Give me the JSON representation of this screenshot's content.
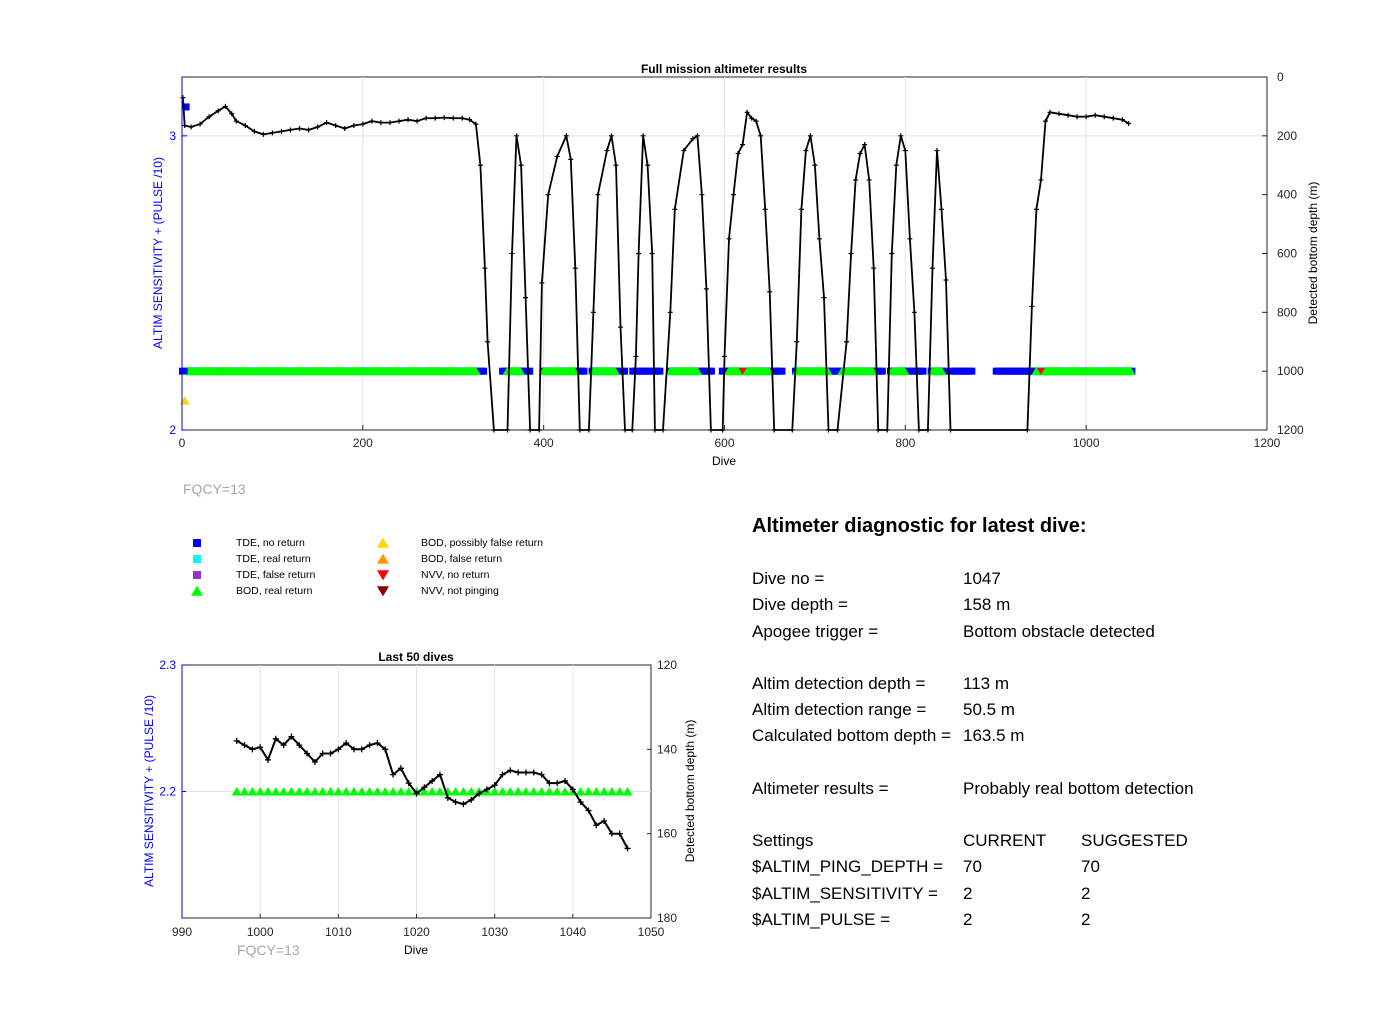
{
  "colors": {
    "left_axis": "#0000ff",
    "tde_no_return": "#0000ff",
    "tde_real_return": "#00ffff",
    "tde_false_return": "#9932cc",
    "bod_real_return": "#00ff00",
    "bod_possibly_false": "#ffd700",
    "bod_false": "#ff9900",
    "nvv_no_return": "#ff0000",
    "nvv_not_pinging": "#8b0000",
    "depth_line": "#000000"
  },
  "chart_data": [
    {
      "type": "scatter",
      "title": "Full mission altimeter results",
      "xlabel": "Dive",
      "ylabel": "ALTIM SENSITIVITY + (PULSE /10)",
      "ylabel_right": "Detected bottom depth (m)",
      "xlim": [
        0,
        1200
      ],
      "ylim": [
        2,
        3.2
      ],
      "ylim_right": [
        1200,
        0
      ],
      "x_ticks": [
        "0",
        "200",
        "400",
        "600",
        "800",
        "1000",
        "1200"
      ],
      "y_ticks": [
        "2",
        "3"
      ],
      "y_ticks_right": [
        "0",
        "200",
        "400",
        "600",
        "800",
        "1000",
        "1200"
      ],
      "grid": true,
      "depth_points": [
        [
          1,
          70
        ],
        [
          3,
          165
        ],
        [
          10,
          170
        ],
        [
          20,
          160
        ],
        [
          30,
          135
        ],
        [
          40,
          115
        ],
        [
          48,
          100
        ],
        [
          55,
          125
        ],
        [
          60,
          150
        ],
        [
          70,
          165
        ],
        [
          80,
          185
        ],
        [
          90,
          195
        ],
        [
          100,
          190
        ],
        [
          110,
          185
        ],
        [
          120,
          180
        ],
        [
          130,
          175
        ],
        [
          140,
          180
        ],
        [
          150,
          170
        ],
        [
          160,
          155
        ],
        [
          170,
          165
        ],
        [
          180,
          175
        ],
        [
          190,
          165
        ],
        [
          200,
          160
        ],
        [
          210,
          150
        ],
        [
          220,
          155
        ],
        [
          230,
          155
        ],
        [
          240,
          150
        ],
        [
          250,
          145
        ],
        [
          260,
          150
        ],
        [
          270,
          140
        ],
        [
          280,
          140
        ],
        [
          290,
          138
        ],
        [
          300,
          140
        ],
        [
          310,
          140
        ],
        [
          318,
          145
        ],
        [
          325,
          160
        ],
        [
          330,
          300
        ],
        [
          335,
          650
        ],
        [
          338,
          900
        ],
        [
          345,
          1200
        ],
        [
          360,
          1200
        ],
        [
          365,
          600
        ],
        [
          370,
          200
        ],
        [
          375,
          300
        ],
        [
          380,
          750
        ],
        [
          385,
          1200
        ],
        [
          395,
          1200
        ],
        [
          398,
          700
        ],
        [
          405,
          400
        ],
        [
          415,
          270
        ],
        [
          425,
          200
        ],
        [
          430,
          280
        ],
        [
          435,
          650
        ],
        [
          440,
          1200
        ],
        [
          450,
          1200
        ],
        [
          455,
          800
        ],
        [
          460,
          400
        ],
        [
          470,
          250
        ],
        [
          475,
          200
        ],
        [
          480,
          300
        ],
        [
          485,
          850
        ],
        [
          490,
          1200
        ],
        [
          498,
          1200
        ],
        [
          502,
          950
        ],
        [
          505,
          600
        ],
        [
          510,
          200
        ],
        [
          515,
          300
        ],
        [
          520,
          600
        ],
        [
          523,
          1200
        ],
        [
          532,
          1200
        ],
        [
          540,
          800
        ],
        [
          545,
          450
        ],
        [
          555,
          250
        ],
        [
          565,
          210
        ],
        [
          570,
          200
        ],
        [
          575,
          400
        ],
        [
          580,
          720
        ],
        [
          585,
          1200
        ],
        [
          598,
          1200
        ],
        [
          600,
          950
        ],
        [
          605,
          550
        ],
        [
          610,
          400
        ],
        [
          615,
          260
        ],
        [
          620,
          230
        ],
        [
          625,
          120
        ],
        [
          630,
          140
        ],
        [
          635,
          150
        ],
        [
          640,
          200
        ],
        [
          645,
          450
        ],
        [
          650,
          730
        ],
        [
          655,
          1200
        ],
        [
          675,
          1200
        ],
        [
          680,
          900
        ],
        [
          685,
          450
        ],
        [
          690,
          250
        ],
        [
          695,
          200
        ],
        [
          700,
          300
        ],
        [
          705,
          550
        ],
        [
          710,
          750
        ],
        [
          715,
          1200
        ],
        [
          725,
          1200
        ],
        [
          735,
          900
        ],
        [
          740,
          600
        ],
        [
          745,
          350
        ],
        [
          750,
          260
        ],
        [
          755,
          230
        ],
        [
          760,
          350
        ],
        [
          765,
          650
        ],
        [
          770,
          1200
        ],
        [
          780,
          1200
        ],
        [
          785,
          600
        ],
        [
          790,
          300
        ],
        [
          795,
          200
        ],
        [
          800,
          250
        ],
        [
          805,
          550
        ],
        [
          810,
          800
        ],
        [
          815,
          1200
        ],
        [
          825,
          1200
        ],
        [
          830,
          650
        ],
        [
          835,
          250
        ],
        [
          840,
          450
        ],
        [
          845,
          690
        ],
        [
          850,
          1200
        ],
        [
          935,
          1200
        ],
        [
          940,
          780
        ],
        [
          945,
          450
        ],
        [
          950,
          350
        ],
        [
          955,
          150
        ],
        [
          960,
          120
        ],
        [
          970,
          125
        ],
        [
          980,
          130
        ],
        [
          990,
          135
        ],
        [
          1000,
          135
        ],
        [
          1010,
          130
        ],
        [
          1020,
          135
        ],
        [
          1030,
          140
        ],
        [
          1040,
          145
        ],
        [
          1047,
          158
        ]
      ],
      "markers": [
        {
          "name": "TDE, no return",
          "dives_ranges": [
            [
              0,
              1050
            ]
          ],
          "y": 2.2
        },
        {
          "name": "BOD, real return",
          "dives_ranges": [
            [
              5,
              325
            ],
            [
              360,
              375
            ],
            [
              400,
              435
            ],
            [
              455,
              480
            ],
            [
              540,
              570
            ],
            [
              605,
              650
            ],
            [
              680,
              715
            ],
            [
              730,
              765
            ],
            [
              785,
              800
            ],
            [
              830,
              840
            ],
            [
              945,
              1050
            ]
          ],
          "y": 2.2
        },
        {
          "name": "NVV, no return",
          "dives": [
            620,
            950
          ],
          "y": 2.2
        },
        {
          "name": "BOD, possibly false return",
          "dives": [
            3
          ],
          "y": 2.1
        }
      ],
      "annotation": "FQCY=13"
    },
    {
      "type": "scatter",
      "title": "Last 50 dives",
      "xlabel": "Dive",
      "ylabel": "ALTIM SENSITIVITY + (PULSE /10)",
      "ylabel_right": "Detected bottom depth (m)",
      "xlim": [
        990,
        1050
      ],
      "ylim": [
        2.1,
        2.3
      ],
      "ylim_right": [
        180,
        120
      ],
      "x_ticks": [
        "990",
        "1000",
        "1010",
        "1020",
        "1030",
        "1040",
        "1050"
      ],
      "y_ticks": [
        "2.2",
        "2.3"
      ],
      "y_ticks_right": [
        "120",
        "140",
        "160",
        "180"
      ],
      "grid": true,
      "dives": [
        997,
        998,
        999,
        1000,
        1001,
        1002,
        1003,
        1004,
        1005,
        1006,
        1007,
        1008,
        1009,
        1010,
        1011,
        1012,
        1013,
        1014,
        1015,
        1016,
        1017,
        1018,
        1019,
        1020,
        1021,
        1022,
        1023,
        1024,
        1025,
        1026,
        1027,
        1028,
        1029,
        1030,
        1031,
        1032,
        1033,
        1034,
        1035,
        1036,
        1037,
        1038,
        1039,
        1040,
        1041,
        1042,
        1043,
        1044,
        1045,
        1046,
        1047
      ],
      "depth": [
        138,
        139,
        140,
        139.5,
        142.5,
        137.5,
        139,
        137,
        139,
        141,
        143,
        141,
        141,
        140,
        138.5,
        140,
        140,
        139,
        138.5,
        140,
        146,
        144.5,
        148,
        150.5,
        149,
        147.5,
        146,
        151.5,
        152.5,
        153,
        152,
        150.5,
        149.5,
        148.5,
        146,
        145,
        145.5,
        145.5,
        145.5,
        146,
        148,
        148,
        147.5,
        149.5,
        152.5,
        154.5,
        158,
        157,
        160,
        160,
        163.5
      ],
      "marker_series": "BOD, real return",
      "marker_value": 2.2,
      "annotation": "FQCY=13"
    }
  ],
  "legend": {
    "col1": [
      "TDE, no return",
      "TDE, real return",
      "TDE, false return",
      "BOD, real return"
    ],
    "col2": [
      "BOD, possibly false return",
      "BOD, false return",
      "NVV, no return",
      "NVV, not pinging"
    ]
  },
  "diagnostic": {
    "title": "Altimeter diagnostic for latest dive:",
    "dive_no_label": "Dive no =",
    "dive_no": "1047",
    "dive_depth_label": "Dive depth =",
    "dive_depth": "158 m",
    "apogee_label": "Apogee trigger =",
    "apogee": "Bottom obstacle detected",
    "altim_depth_label": "Altim detection depth =",
    "altim_depth": "113 m",
    "altim_range_label": "Altim detection range =",
    "altim_range": "50.5 m",
    "calc_depth_label": "Calculated bottom depth =",
    "calc_depth": "163.5 m",
    "results_label": "Altimeter results =",
    "results": "Probably real bottom detection",
    "settings_label": "Settings",
    "current_label": "CURRENT",
    "suggested_label": "SUGGESTED",
    "ping_label": "$ALTIM_PING_DEPTH =",
    "ping_current": "70",
    "ping_suggested": "70",
    "sens_label": "$ALTIM_SENSITIVITY =",
    "sens_current": "2",
    "sens_suggested": "2",
    "pulse_label": "$ALTIM_PULSE =",
    "pulse_current": "2",
    "pulse_suggested": "2"
  }
}
